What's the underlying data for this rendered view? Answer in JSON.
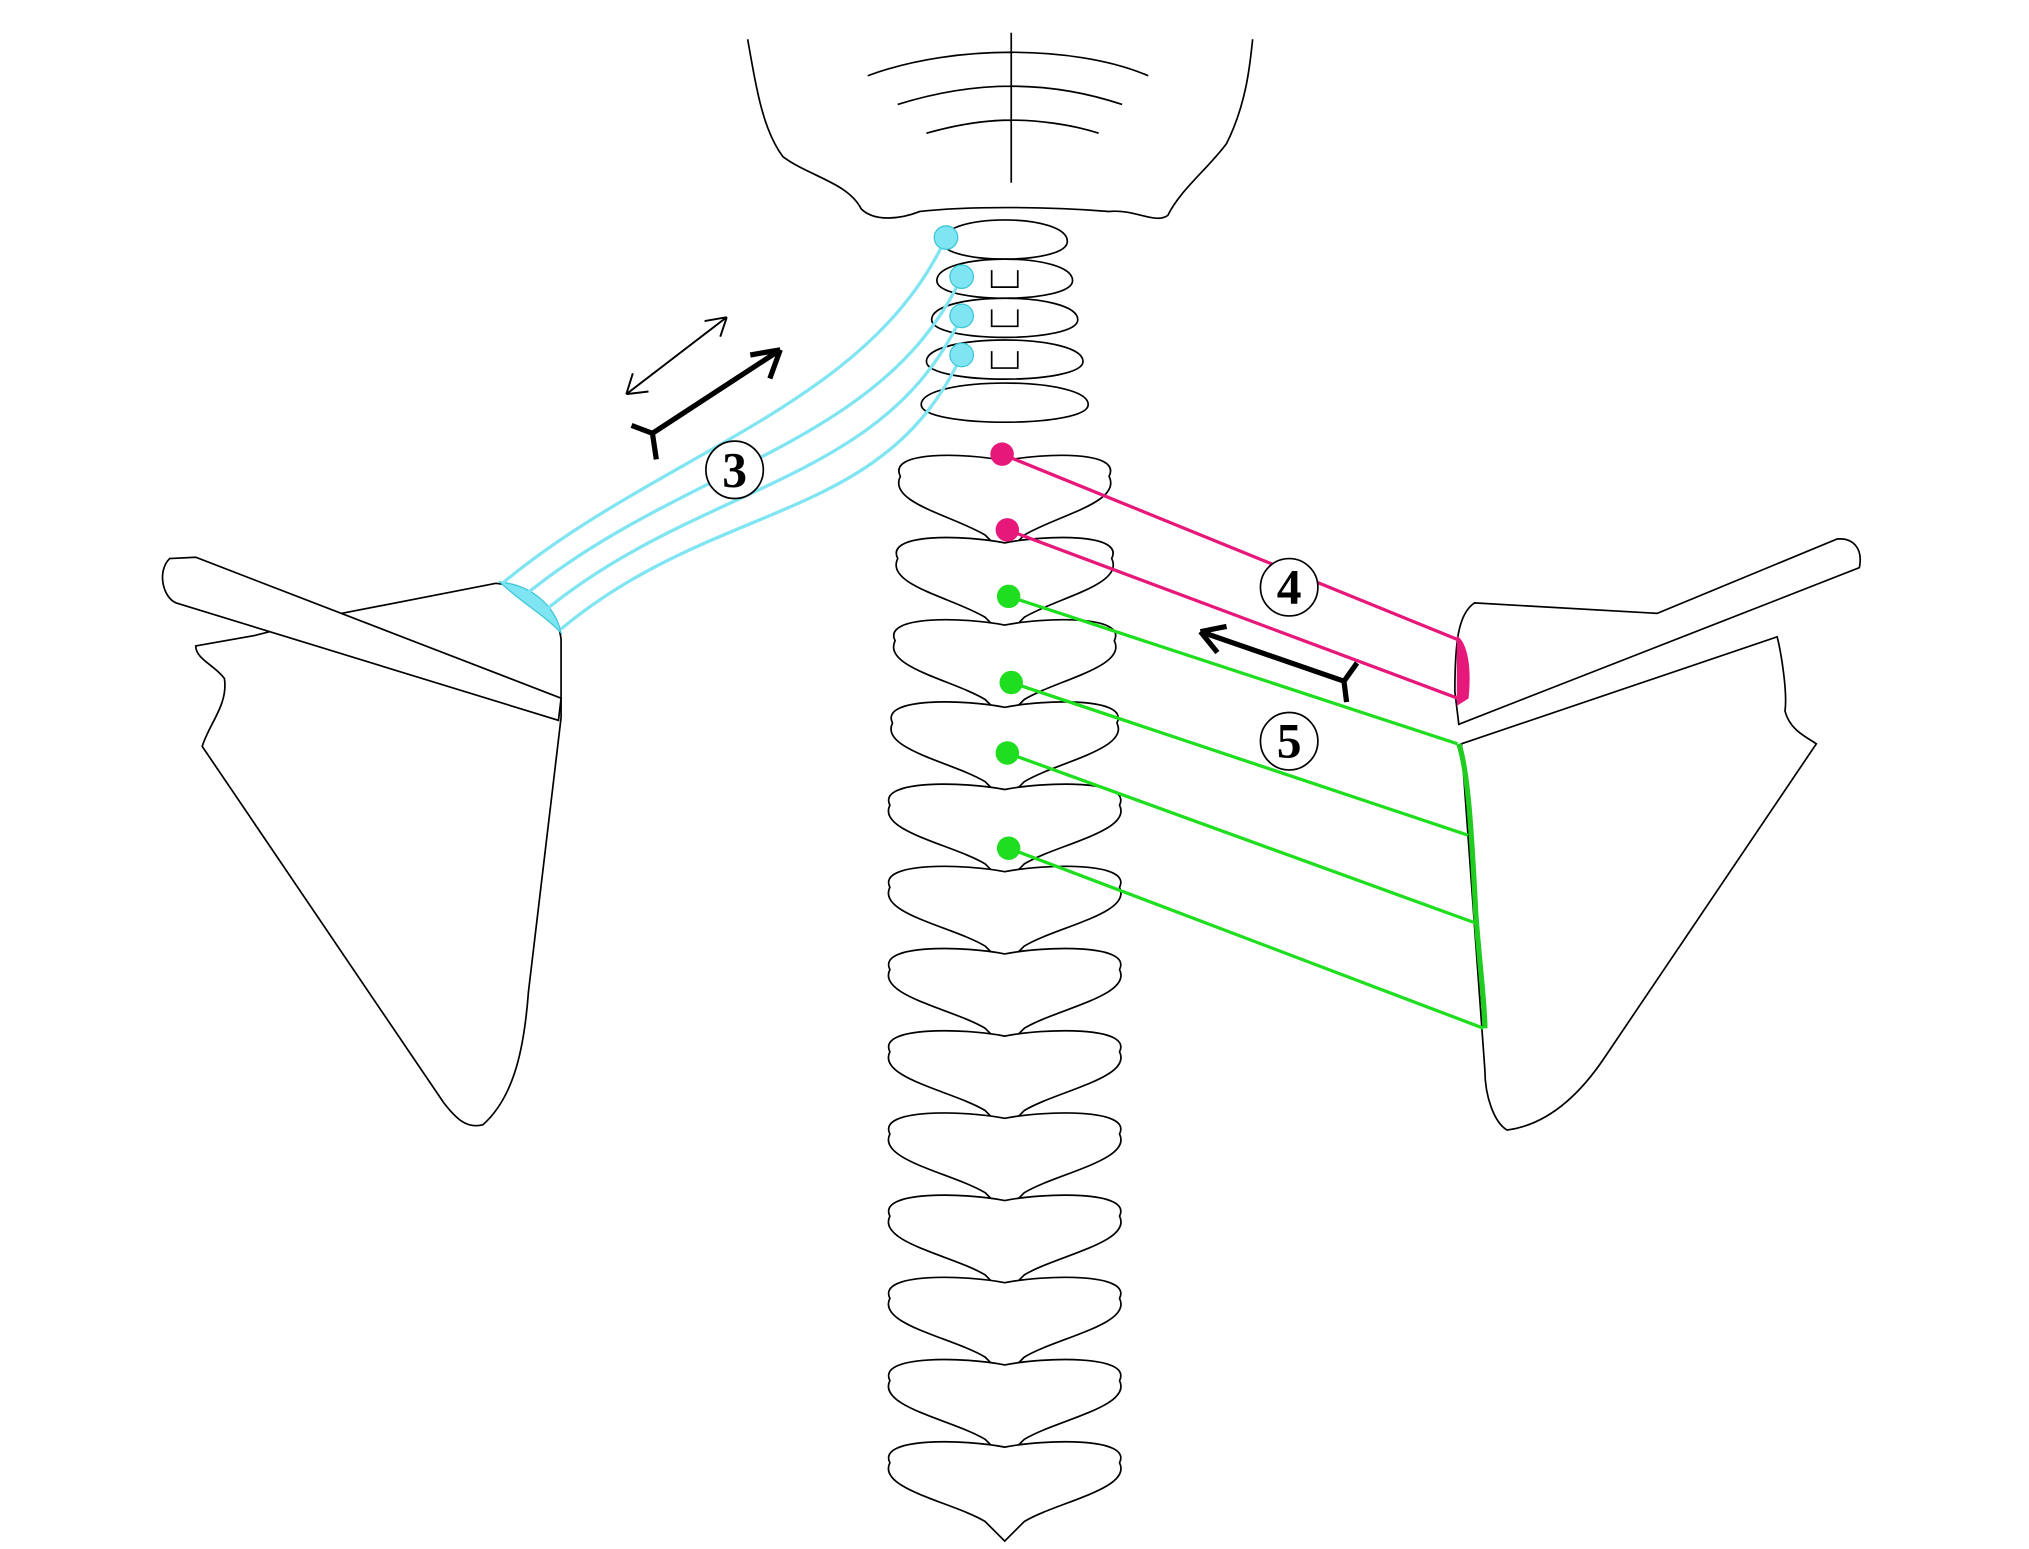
{
  "labels": [
    "3",
    "4",
    "5"
  ]
}
